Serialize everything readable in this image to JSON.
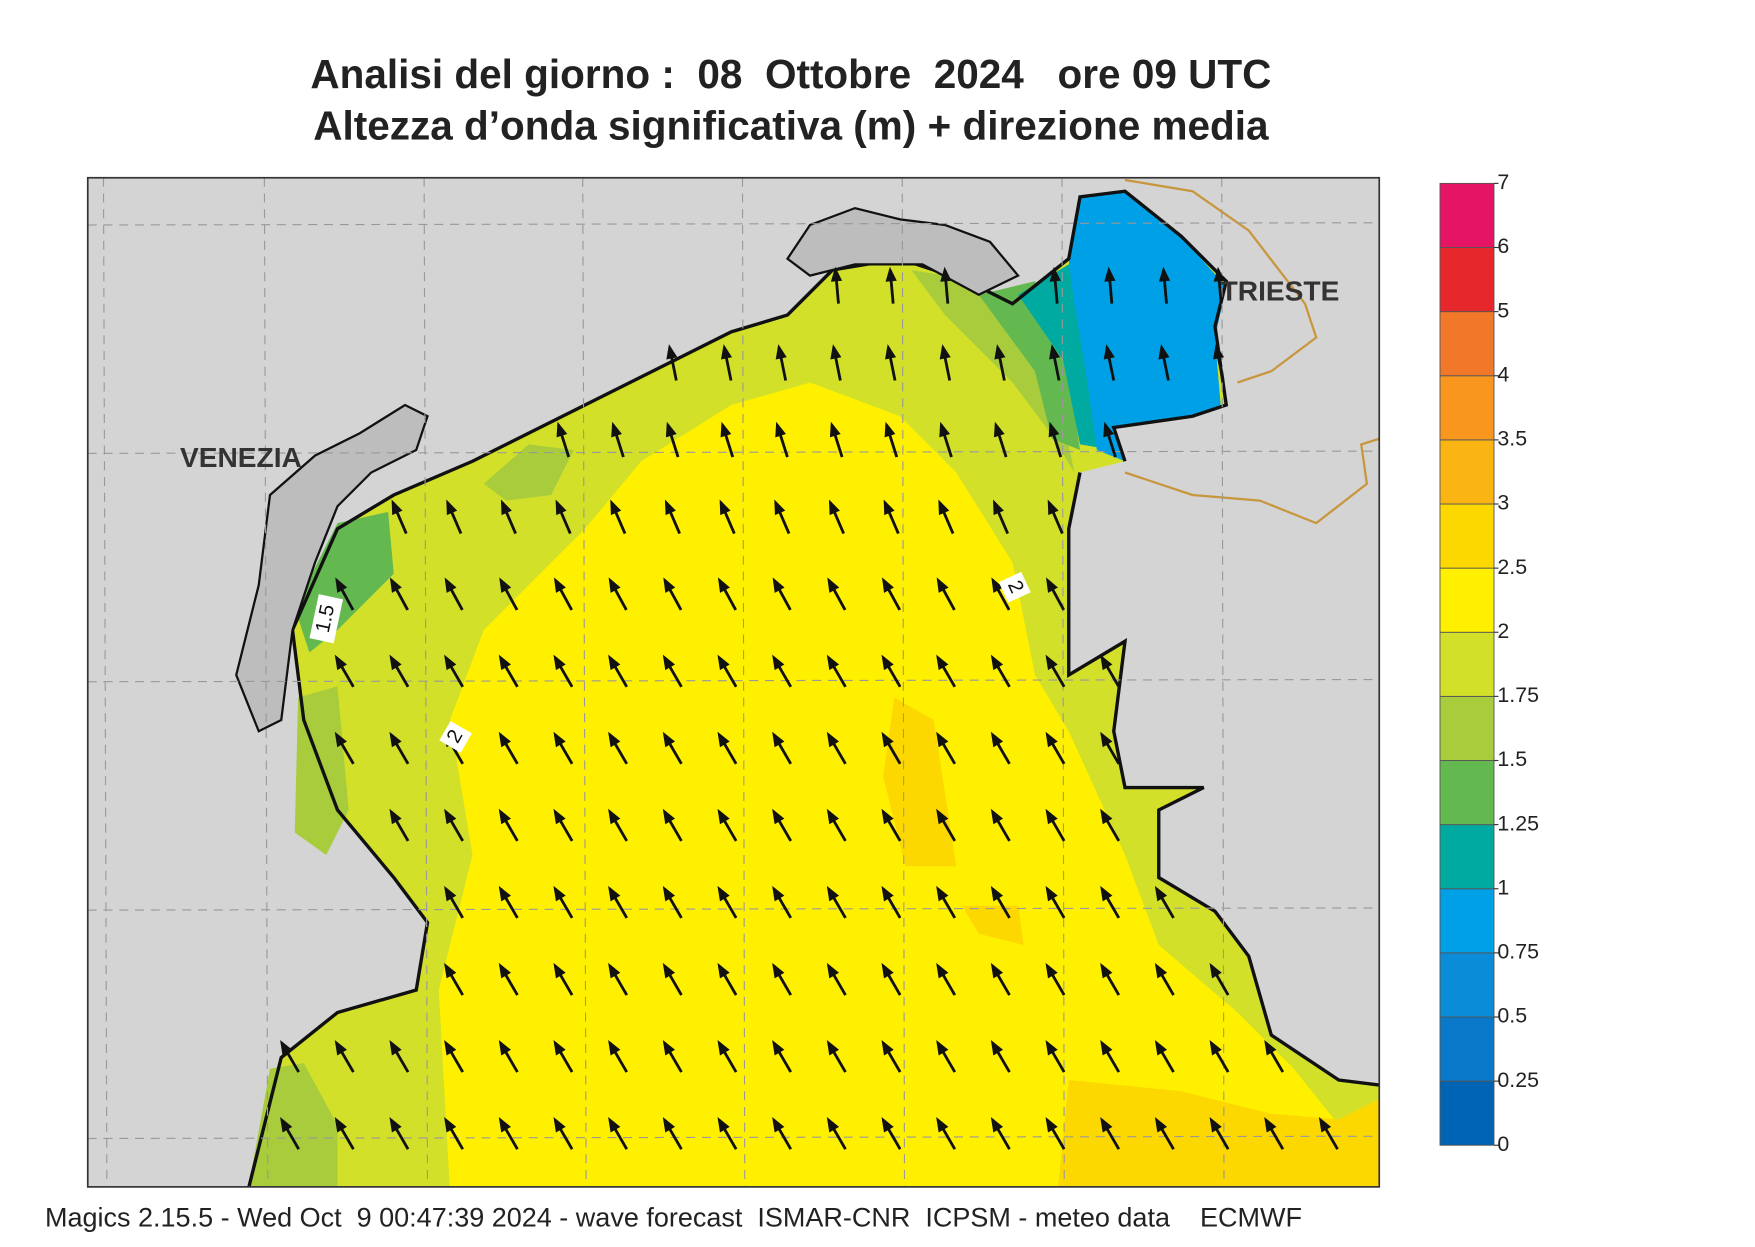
{
  "title": {
    "line1": "Analisi del giorno :  08  Ottobre  2024   ore 09 UTC",
    "line2": "Altezza d’onda significativa (m) + direzione media"
  },
  "map": {
    "places": [
      "VENEZIA",
      "TRIESTE"
    ],
    "contour_labels": [
      "1.5",
      "2",
      "2"
    ]
  },
  "colorbar": {
    "levels": [
      0,
      0.25,
      0.5,
      0.75,
      1,
      1.25,
      1.5,
      1.75,
      2,
      2.5,
      3,
      3.5,
      4,
      5,
      6,
      7
    ],
    "colors": [
      "#0064b4",
      "#0a78c8",
      "#0a8cd8",
      "#00a0e6",
      "#00aaa0",
      "#64b850",
      "#a8cc3c",
      "#d2e02a",
      "#fff000",
      "#fcd800",
      "#fab414",
      "#f8961e",
      "#f07828",
      "#e6282d",
      "#e61464"
    ]
  },
  "footer": "Magics 2.15.5 - Wed Oct  9 00:47:39 2024 - wave forecast  ISMAR-CNR  ICPSM - meteo data    ECMWF"
}
